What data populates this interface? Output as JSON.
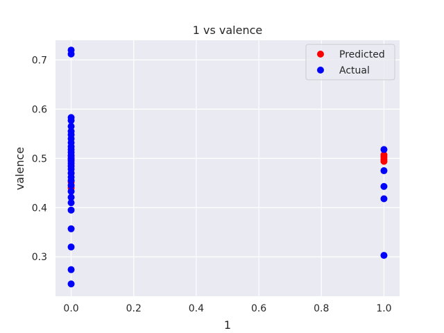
{
  "chart_data": {
    "type": "scatter",
    "title": "1 vs valence",
    "xlabel": "1",
    "ylabel": "valence",
    "xlim": [
      -0.05,
      1.05
    ],
    "ylim": [
      0.22,
      0.74
    ],
    "xticks": [
      0.0,
      0.2,
      0.4,
      0.6,
      0.8,
      1.0
    ],
    "xtick_labels": [
      "0.0",
      "0.2",
      "0.4",
      "0.6",
      "0.8",
      "1.0"
    ],
    "yticks": [
      0.3,
      0.4,
      0.5,
      0.6,
      0.7
    ],
    "ytick_labels": [
      "0.3",
      "0.4",
      "0.5",
      "0.6",
      "0.7"
    ],
    "grid": true,
    "legend_position": "top-right",
    "colors": {
      "background": "#eaeaf2",
      "grid": "#ffffff",
      "predicted": "#ff0000",
      "actual": "#0000ff"
    },
    "series": [
      {
        "name": "Predicted",
        "color": "#ff0000",
        "points": [
          {
            "x": 0.0,
            "y": 0.44
          },
          {
            "x": 0.0,
            "y": 0.452
          },
          {
            "x": 0.0,
            "y": 0.47
          },
          {
            "x": 0.0,
            "y": 0.485
          },
          {
            "x": 0.0,
            "y": 0.498
          },
          {
            "x": 0.0,
            "y": 0.505
          },
          {
            "x": 1.0,
            "y": 0.494
          },
          {
            "x": 1.0,
            "y": 0.498
          },
          {
            "x": 1.0,
            "y": 0.503
          },
          {
            "x": 1.0,
            "y": 0.507
          }
        ]
      },
      {
        "name": "Actual",
        "color": "#0000ff",
        "points": [
          {
            "x": 0.0,
            "y": 0.72
          },
          {
            "x": 0.0,
            "y": 0.712
          },
          {
            "x": 0.0,
            "y": 0.583
          },
          {
            "x": 0.0,
            "y": 0.577
          },
          {
            "x": 0.0,
            "y": 0.565
          },
          {
            "x": 0.0,
            "y": 0.555
          },
          {
            "x": 0.0,
            "y": 0.548
          },
          {
            "x": 0.0,
            "y": 0.54
          },
          {
            "x": 0.0,
            "y": 0.532
          },
          {
            "x": 0.0,
            "y": 0.524
          },
          {
            "x": 0.0,
            "y": 0.518
          },
          {
            "x": 0.0,
            "y": 0.512
          },
          {
            "x": 0.0,
            "y": 0.506
          },
          {
            "x": 0.0,
            "y": 0.5
          },
          {
            "x": 0.0,
            "y": 0.495
          },
          {
            "x": 0.0,
            "y": 0.49
          },
          {
            "x": 0.0,
            "y": 0.484
          },
          {
            "x": 0.0,
            "y": 0.478
          },
          {
            "x": 0.0,
            "y": 0.47
          },
          {
            "x": 0.0,
            "y": 0.462
          },
          {
            "x": 0.0,
            "y": 0.455
          },
          {
            "x": 0.0,
            "y": 0.445
          },
          {
            "x": 0.0,
            "y": 0.433
          },
          {
            "x": 0.0,
            "y": 0.421
          },
          {
            "x": 0.0,
            "y": 0.41
          },
          {
            "x": 0.0,
            "y": 0.395
          },
          {
            "x": 0.0,
            "y": 0.357
          },
          {
            "x": 0.0,
            "y": 0.32
          },
          {
            "x": 0.0,
            "y": 0.274
          },
          {
            "x": 0.0,
            "y": 0.245
          },
          {
            "x": 1.0,
            "y": 0.518
          },
          {
            "x": 1.0,
            "y": 0.475
          },
          {
            "x": 1.0,
            "y": 0.443
          },
          {
            "x": 1.0,
            "y": 0.418
          },
          {
            "x": 1.0,
            "y": 0.303
          }
        ]
      }
    ]
  }
}
